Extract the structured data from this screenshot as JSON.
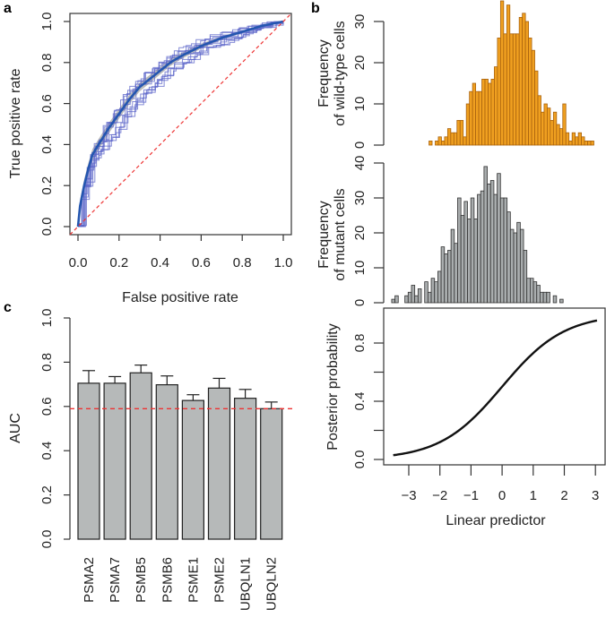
{
  "panels": {
    "a": "a",
    "b": "b",
    "c": "c"
  },
  "colors": {
    "roc_fold": "#5b64c8",
    "roc_mean": "#2456b0",
    "roc_band": "#b0b0b0",
    "chance": "#ee3333",
    "wildtype": "#f0a020",
    "wildtype_edge": "#a8620e",
    "mutant": "#a9adae",
    "bar": "#b6b9b9"
  },
  "chart_data": [
    {
      "id": "roc",
      "type": "line",
      "xlabel": "False positive rate",
      "ylabel": "True positive rate",
      "xlim": [
        0,
        1
      ],
      "ylim": [
        0,
        1
      ],
      "xticks": [
        "0.0",
        "0.2",
        "0.4",
        "0.6",
        "0.8",
        "1.0"
      ],
      "yticks": [
        "0.0",
        "0.2",
        "0.4",
        "0.6",
        "0.8",
        "1.0"
      ],
      "n_folds": 10,
      "mean_curve": {
        "x": [
          0,
          0.01,
          0.03,
          0.05,
          0.07,
          0.1,
          0.15,
          0.2,
          0.25,
          0.3,
          0.35,
          0.4,
          0.45,
          0.5,
          0.6,
          0.7,
          0.8,
          0.9,
          1
        ],
        "y": [
          0,
          0.1,
          0.2,
          0.28,
          0.35,
          0.4,
          0.48,
          0.55,
          0.62,
          0.68,
          0.72,
          0.76,
          0.8,
          0.83,
          0.88,
          0.92,
          0.95,
          0.98,
          1
        ]
      },
      "band_halfwidth": 0.03,
      "chance_line": "diagonal"
    },
    {
      "id": "hist-wildtype",
      "type": "bar",
      "ylabel": [
        "Frequency",
        "of wild-type cells"
      ],
      "bin_start": -2.35,
      "bin_width": 0.1,
      "counts": [
        1,
        0,
        1,
        2,
        1,
        2,
        4,
        3,
        3,
        6,
        6,
        2,
        10,
        13,
        15,
        13,
        13,
        16,
        16,
        15,
        16,
        19,
        26,
        35,
        27,
        34,
        27,
        27,
        27,
        31,
        32,
        30,
        26,
        23,
        18,
        12,
        8,
        10,
        9,
        6,
        8,
        5,
        4,
        10,
        3,
        1,
        3,
        2,
        3,
        2,
        1,
        1,
        1
      ],
      "yticks": [
        "0",
        "10",
        "20",
        "30"
      ],
      "ylim": [
        0,
        35
      ]
    },
    {
      "id": "hist-mutant",
      "type": "bar",
      "ylabel": [
        "Frequency",
        "of mutant cells"
      ],
      "bin_start": -3.55,
      "bin_width": 0.106,
      "counts": [
        1,
        2,
        0,
        0,
        2,
        3,
        5,
        2,
        4,
        0,
        6,
        3,
        7,
        6,
        9,
        16,
        14,
        15,
        21,
        17,
        30,
        25,
        29,
        24,
        30,
        24,
        31,
        32,
        39,
        34,
        35,
        31,
        37,
        30,
        30,
        26,
        21,
        20,
        23,
        21,
        15,
        7,
        7,
        6,
        5,
        3,
        3,
        3,
        0,
        2,
        0,
        1
      ],
      "yticks": [
        "0",
        "10",
        "20",
        "30",
        "40"
      ],
      "ylim": [
        0,
        40
      ]
    },
    {
      "id": "posterior",
      "type": "line",
      "xlabel": "Linear predictor",
      "ylabel": "Posterior probability",
      "function": "logistic",
      "xrange": [
        -3.5,
        3.05
      ],
      "xticks": [
        "−3",
        "−2",
        "−1",
        "0",
        "1",
        "2",
        "3"
      ],
      "yticks": [
        "0.0",
        "",
        "0.4",
        "",
        "0.8"
      ]
    },
    {
      "id": "auc",
      "type": "bar",
      "ylabel": "AUC",
      "categories": [
        "PSMA2",
        "PSMA7",
        "PSMB5",
        "PSMB6",
        "PSME1",
        "PSME2",
        "UBQLN1",
        "UBQLN2"
      ],
      "values": [
        0.705,
        0.705,
        0.752,
        0.698,
        0.627,
        0.683,
        0.637,
        0.59
      ],
      "error_upper": [
        0.762,
        0.735,
        0.787,
        0.738,
        0.653,
        0.727,
        0.677,
        0.62
      ],
      "reference_line": 0.59,
      "ylim": [
        0,
        1
      ],
      "yticks": [
        "0.0",
        "0.2",
        "0.4",
        "0.6",
        "0.8",
        "1.0"
      ]
    }
  ]
}
